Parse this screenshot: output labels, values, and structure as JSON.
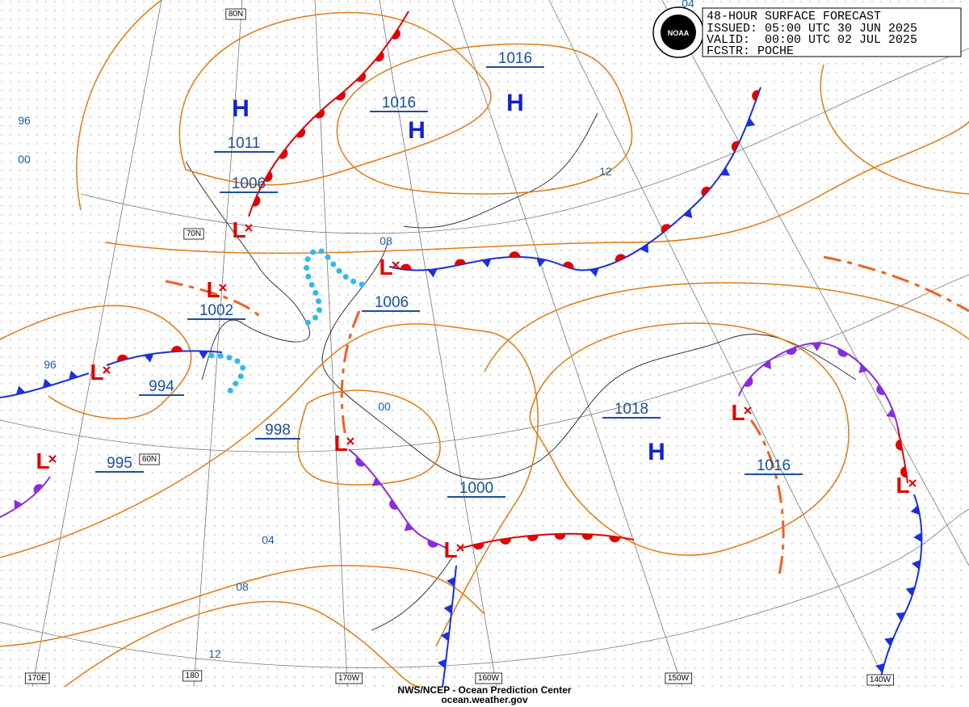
{
  "header": {
    "lines": [
      "48-HOUR SURFACE FORECAST",
      "ISSUED: 05:00 UTC 30 JUN 2025",
      "VALID:  00:00 UTC 02 JUL 2025",
      "FCSTR: POCHE"
    ]
  },
  "logo": "NOAA",
  "map": {
    "highs": [
      "H",
      "H",
      "H",
      "H"
    ],
    "lows": [
      "L",
      "L",
      "L",
      "L",
      "L",
      "L",
      "L",
      "L",
      "L"
    ],
    "pressures": [
      1011,
      1006,
      1016,
      1016,
      1002,
      994,
      995,
      998,
      1006,
      1000,
      1018,
      1016
    ],
    "isobar_labels": [
      "96",
      "00",
      "12",
      "04",
      "08",
      "96",
      "00",
      "04",
      "08",
      "12"
    ],
    "grid_labels": [
      "80N",
      "70N",
      "60N",
      "170E",
      "180",
      "170W",
      "160W",
      "150W",
      "140W"
    ]
  },
  "footer": {
    "lines": [
      "NWS/NCEP - Ocean Prediction Center",
      "ocean.weather.gov"
    ]
  }
}
